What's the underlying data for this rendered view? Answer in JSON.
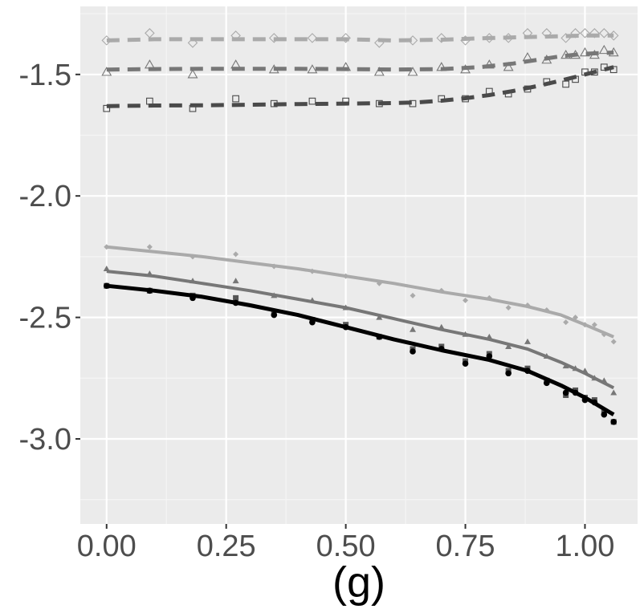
{
  "colors": {
    "panel": "#EBEBEB",
    "grid_major": "#FFFFFF",
    "grid_minor": "#F5F5F5",
    "tick_text": "#4D4D4D",
    "axis_title": "#000000"
  },
  "chart_data": {
    "type": "scatter",
    "title": "",
    "xlabel": "(g)",
    "ylabel": "",
    "xlim": [
      -0.055,
      1.11
    ],
    "ylim": [
      -3.35,
      -1.22
    ],
    "x_ticks": [
      0.0,
      0.25,
      0.5,
      0.75,
      1.0
    ],
    "x_tick_labels": [
      "0.00",
      "0.25",
      "0.50",
      "0.75",
      "1.00"
    ],
    "y_ticks": [
      -3.0,
      -2.5,
      -2.0,
      -1.5
    ],
    "y_tick_labels": [
      "-3.0",
      "-2.5",
      "-2.0",
      "-1.5"
    ],
    "grid": true,
    "legend": "none",
    "series": [
      {
        "name": "upper-diamond",
        "color": "#AAAAAA",
        "line_style": "dashed",
        "marker": "open-diamond",
        "points": [
          [
            0.0,
            -1.36
          ],
          [
            0.09,
            -1.33
          ],
          [
            0.18,
            -1.37
          ],
          [
            0.27,
            -1.34
          ],
          [
            0.35,
            -1.35
          ],
          [
            0.43,
            -1.35
          ],
          [
            0.5,
            -1.35
          ],
          [
            0.57,
            -1.37
          ],
          [
            0.64,
            -1.36
          ],
          [
            0.7,
            -1.35
          ],
          [
            0.75,
            -1.36
          ],
          [
            0.8,
            -1.35
          ],
          [
            0.84,
            -1.35
          ],
          [
            0.88,
            -1.33
          ],
          [
            0.92,
            -1.33
          ],
          [
            0.96,
            -1.35
          ],
          [
            0.98,
            -1.33
          ],
          [
            1.0,
            -1.33
          ],
          [
            1.02,
            -1.33
          ],
          [
            1.04,
            -1.33
          ],
          [
            1.06,
            -1.34
          ]
        ],
        "trend": [
          [
            0.0,
            -1.36
          ],
          [
            0.1,
            -1.355
          ],
          [
            0.2,
            -1.355
          ],
          [
            0.3,
            -1.355
          ],
          [
            0.4,
            -1.355
          ],
          [
            0.5,
            -1.355
          ],
          [
            0.6,
            -1.36
          ],
          [
            0.7,
            -1.357
          ],
          [
            0.8,
            -1.35
          ],
          [
            0.9,
            -1.345
          ],
          [
            1.0,
            -1.34
          ],
          [
            1.06,
            -1.34
          ]
        ]
      },
      {
        "name": "middle-triangle",
        "color": "#777777",
        "line_style": "dashed",
        "marker": "open-triangle",
        "points": [
          [
            0.0,
            -1.49
          ],
          [
            0.09,
            -1.46
          ],
          [
            0.18,
            -1.5
          ],
          [
            0.27,
            -1.46
          ],
          [
            0.35,
            -1.48
          ],
          [
            0.43,
            -1.48
          ],
          [
            0.5,
            -1.47
          ],
          [
            0.57,
            -1.49
          ],
          [
            0.64,
            -1.49
          ],
          [
            0.7,
            -1.47
          ],
          [
            0.75,
            -1.48
          ],
          [
            0.8,
            -1.46
          ],
          [
            0.84,
            -1.47
          ],
          [
            0.88,
            -1.43
          ],
          [
            0.92,
            -1.44
          ],
          [
            0.96,
            -1.42
          ],
          [
            0.98,
            -1.42
          ],
          [
            1.0,
            -1.41
          ],
          [
            1.02,
            -1.42
          ],
          [
            1.04,
            -1.4
          ],
          [
            1.06,
            -1.41
          ]
        ],
        "trend": [
          [
            0.0,
            -1.48
          ],
          [
            0.1,
            -1.478
          ],
          [
            0.2,
            -1.477
          ],
          [
            0.3,
            -1.477
          ],
          [
            0.4,
            -1.477
          ],
          [
            0.5,
            -1.478
          ],
          [
            0.6,
            -1.48
          ],
          [
            0.7,
            -1.478
          ],
          [
            0.78,
            -1.47
          ],
          [
            0.85,
            -1.455
          ],
          [
            0.9,
            -1.44
          ],
          [
            0.95,
            -1.425
          ],
          [
            1.0,
            -1.415
          ],
          [
            1.06,
            -1.41
          ]
        ]
      },
      {
        "name": "lower-square",
        "color": "#4A4A4A",
        "line_style": "dashed",
        "marker": "open-square",
        "points": [
          [
            0.0,
            -1.64
          ],
          [
            0.09,
            -1.61
          ],
          [
            0.18,
            -1.64
          ],
          [
            0.27,
            -1.6
          ],
          [
            0.35,
            -1.62
          ],
          [
            0.43,
            -1.61
          ],
          [
            0.5,
            -1.61
          ],
          [
            0.57,
            -1.62
          ],
          [
            0.64,
            -1.62
          ],
          [
            0.7,
            -1.6
          ],
          [
            0.75,
            -1.6
          ],
          [
            0.8,
            -1.57
          ],
          [
            0.84,
            -1.58
          ],
          [
            0.88,
            -1.56
          ],
          [
            0.92,
            -1.53
          ],
          [
            0.96,
            -1.54
          ],
          [
            0.98,
            -1.52
          ],
          [
            1.0,
            -1.49
          ],
          [
            1.02,
            -1.49
          ],
          [
            1.04,
            -1.47
          ],
          [
            1.06,
            -1.48
          ]
        ],
        "trend": [
          [
            0.0,
            -1.63
          ],
          [
            0.1,
            -1.628
          ],
          [
            0.2,
            -1.627
          ],
          [
            0.3,
            -1.625
          ],
          [
            0.4,
            -1.622
          ],
          [
            0.5,
            -1.62
          ],
          [
            0.6,
            -1.618
          ],
          [
            0.65,
            -1.615
          ],
          [
            0.7,
            -1.608
          ],
          [
            0.75,
            -1.598
          ],
          [
            0.8,
            -1.585
          ],
          [
            0.85,
            -1.568
          ],
          [
            0.9,
            -1.548
          ],
          [
            0.95,
            -1.525
          ],
          [
            1.0,
            -1.5
          ],
          [
            1.06,
            -1.47
          ]
        ]
      },
      {
        "name": "light-solid",
        "color": "#AAAAAA",
        "line_style": "solid",
        "marker": "filled-diamond",
        "points": [
          [
            0.0,
            -2.21
          ],
          [
            0.09,
            -2.21
          ],
          [
            0.18,
            -2.25
          ],
          [
            0.27,
            -2.24
          ],
          [
            0.35,
            -2.29
          ],
          [
            0.43,
            -2.31
          ],
          [
            0.5,
            -2.33
          ],
          [
            0.57,
            -2.36
          ],
          [
            0.64,
            -2.41
          ],
          [
            0.7,
            -2.39
          ],
          [
            0.75,
            -2.43
          ],
          [
            0.8,
            -2.42
          ],
          [
            0.84,
            -2.46
          ],
          [
            0.88,
            -2.45
          ],
          [
            0.92,
            -2.47
          ],
          [
            0.96,
            -2.52
          ],
          [
            0.98,
            -2.5
          ],
          [
            1.0,
            -2.53
          ],
          [
            1.02,
            -2.53
          ],
          [
            1.04,
            -2.57
          ],
          [
            1.06,
            -2.6
          ]
        ],
        "trend": [
          [
            0.0,
            -2.21
          ],
          [
            0.1,
            -2.23
          ],
          [
            0.2,
            -2.25
          ],
          [
            0.3,
            -2.275
          ],
          [
            0.4,
            -2.3
          ],
          [
            0.5,
            -2.33
          ],
          [
            0.6,
            -2.36
          ],
          [
            0.7,
            -2.395
          ],
          [
            0.8,
            -2.425
          ],
          [
            0.88,
            -2.455
          ],
          [
            0.95,
            -2.49
          ],
          [
            1.0,
            -2.53
          ],
          [
            1.06,
            -2.58
          ]
        ]
      },
      {
        "name": "mid-solid",
        "color": "#777777",
        "line_style": "solid",
        "marker": "filled-triangle",
        "points": [
          [
            0.0,
            -2.3
          ],
          [
            0.09,
            -2.32
          ],
          [
            0.18,
            -2.35
          ],
          [
            0.27,
            -2.35
          ],
          [
            0.35,
            -2.41
          ],
          [
            0.43,
            -2.43
          ],
          [
            0.5,
            -2.46
          ],
          [
            0.57,
            -2.5
          ],
          [
            0.64,
            -2.55
          ],
          [
            0.7,
            -2.54
          ],
          [
            0.75,
            -2.57
          ],
          [
            0.8,
            -2.58
          ],
          [
            0.84,
            -2.62
          ],
          [
            0.88,
            -2.6
          ],
          [
            0.92,
            -2.66
          ],
          [
            0.96,
            -2.7
          ],
          [
            0.98,
            -2.71
          ],
          [
            1.0,
            -2.72
          ],
          [
            1.02,
            -2.75
          ],
          [
            1.04,
            -2.76
          ],
          [
            1.06,
            -2.81
          ]
        ],
        "trend": [
          [
            0.0,
            -2.31
          ],
          [
            0.1,
            -2.33
          ],
          [
            0.2,
            -2.36
          ],
          [
            0.3,
            -2.39
          ],
          [
            0.4,
            -2.425
          ],
          [
            0.5,
            -2.46
          ],
          [
            0.6,
            -2.505
          ],
          [
            0.7,
            -2.55
          ],
          [
            0.8,
            -2.59
          ],
          [
            0.88,
            -2.63
          ],
          [
            0.95,
            -2.685
          ],
          [
            1.0,
            -2.73
          ],
          [
            1.06,
            -2.79
          ]
        ]
      },
      {
        "name": "dark-solid-points",
        "color": "#555555",
        "line_style": "none",
        "marker": "filled-square",
        "points": [
          [
            0.0,
            -2.37
          ],
          [
            0.09,
            -2.39
          ],
          [
            0.18,
            -2.41
          ],
          [
            0.27,
            -2.42
          ],
          [
            0.35,
            -2.48
          ],
          [
            0.43,
            -2.51
          ],
          [
            0.5,
            -2.53
          ],
          [
            0.57,
            -2.58
          ],
          [
            0.64,
            -2.63
          ],
          [
            0.7,
            -2.62
          ],
          [
            0.75,
            -2.68
          ],
          [
            0.8,
            -2.65
          ],
          [
            0.84,
            -2.72
          ],
          [
            0.88,
            -2.71
          ],
          [
            0.92,
            -2.76
          ],
          [
            0.96,
            -2.82
          ],
          [
            0.98,
            -2.8
          ],
          [
            1.0,
            -2.83
          ],
          [
            1.02,
            -2.84
          ],
          [
            1.04,
            -2.89
          ],
          [
            1.06,
            -2.93
          ]
        ],
        "trend": []
      },
      {
        "name": "black-solid",
        "color": "#000000",
        "line_style": "solid",
        "marker": "filled-circle",
        "points": [
          [
            0.0,
            -2.37
          ],
          [
            0.09,
            -2.39
          ],
          [
            0.18,
            -2.42
          ],
          [
            0.27,
            -2.44
          ],
          [
            0.35,
            -2.49
          ],
          [
            0.43,
            -2.52
          ],
          [
            0.5,
            -2.54
          ],
          [
            0.57,
            -2.58
          ],
          [
            0.64,
            -2.64
          ],
          [
            0.7,
            -2.63
          ],
          [
            0.75,
            -2.69
          ],
          [
            0.8,
            -2.66
          ],
          [
            0.84,
            -2.73
          ],
          [
            0.88,
            -2.72
          ],
          [
            0.92,
            -2.77
          ],
          [
            0.96,
            -2.81
          ],
          [
            0.98,
            -2.81
          ],
          [
            1.0,
            -2.84
          ],
          [
            1.02,
            -2.85
          ],
          [
            1.04,
            -2.9
          ],
          [
            1.06,
            -2.93
          ]
        ],
        "trend": [
          [
            0.0,
            -2.37
          ],
          [
            0.1,
            -2.39
          ],
          [
            0.2,
            -2.415
          ],
          [
            0.3,
            -2.45
          ],
          [
            0.4,
            -2.49
          ],
          [
            0.5,
            -2.54
          ],
          [
            0.6,
            -2.59
          ],
          [
            0.7,
            -2.635
          ],
          [
            0.8,
            -2.675
          ],
          [
            0.88,
            -2.72
          ],
          [
            0.95,
            -2.78
          ],
          [
            1.0,
            -2.83
          ],
          [
            1.06,
            -2.9
          ]
        ]
      }
    ]
  }
}
